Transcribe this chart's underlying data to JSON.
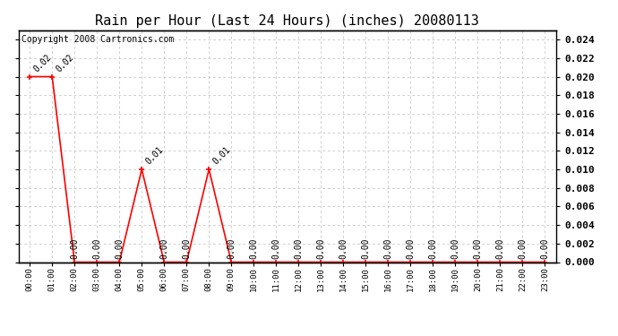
{
  "title": "Rain per Hour (Last 24 Hours) (inches) 20080113",
  "copyright_text": "Copyright 2008 Cartronics.com",
  "hours": [
    "00:00",
    "01:00",
    "02:00",
    "03:00",
    "04:00",
    "05:00",
    "06:00",
    "07:00",
    "08:00",
    "09:00",
    "10:00",
    "11:00",
    "12:00",
    "13:00",
    "14:00",
    "15:00",
    "16:00",
    "17:00",
    "18:00",
    "19:00",
    "20:00",
    "21:00",
    "22:00",
    "23:00"
  ],
  "values": [
    0.02,
    0.02,
    0.0,
    0.0,
    0.0,
    0.01,
    0.0,
    0.0,
    0.01,
    0.0,
    0.0,
    0.0,
    0.0,
    0.0,
    0.0,
    0.0,
    0.0,
    0.0,
    0.0,
    0.0,
    0.0,
    0.0,
    0.0,
    0.0
  ],
  "line_color": "#ff0000",
  "marker_color": "#ff0000",
  "bg_color": "#ffffff",
  "plot_bg_color": "#ffffff",
  "grid_color": "#bbbbbb",
  "title_fontsize": 11,
  "annotation_fontsize": 7,
  "copyright_fontsize": 7,
  "ylim": [
    0.0,
    0.025
  ],
  "ytick_step": 0.002,
  "yticks": [
    0.0,
    0.002,
    0.004,
    0.006,
    0.008,
    0.01,
    0.012,
    0.014,
    0.016,
    0.018,
    0.02,
    0.022,
    0.024
  ]
}
